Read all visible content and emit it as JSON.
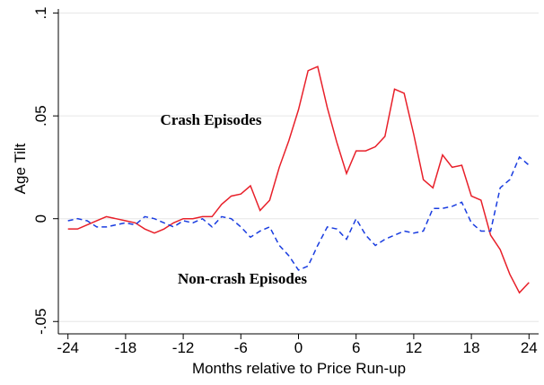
{
  "chart_data": {
    "type": "line",
    "x_label": "Months relative to Price Run-up",
    "y_label": "Age Tilt",
    "annotations": [
      "Crash Episodes",
      "Non-crash Episodes"
    ],
    "x": [
      -24,
      -23,
      -22,
      -21,
      -20,
      -19,
      -18,
      -17,
      -16,
      -15,
      -14,
      -13,
      -12,
      -11,
      -10,
      -9,
      -8,
      -7,
      -6,
      -5,
      -4,
      -3,
      -2,
      -1,
      0,
      1,
      2,
      3,
      4,
      5,
      6,
      7,
      8,
      9,
      10,
      11,
      12,
      13,
      14,
      15,
      16,
      17,
      18,
      19,
      20,
      21,
      22,
      23,
      24
    ],
    "series": [
      {
        "name": "Crash Episodes",
        "color": "#e8202a",
        "dash": false,
        "values": [
          -0.005,
          -0.005,
          -0.003,
          -0.001,
          0.001,
          0,
          -0.001,
          -0.002,
          -0.005,
          -0.007,
          -0.005,
          -0.002,
          0,
          0,
          0.001,
          0.001,
          0.007,
          0.011,
          0.012,
          0.016,
          0.004,
          0.009,
          0.025,
          0.038,
          0.053,
          0.072,
          0.074,
          0.054,
          0.037,
          0.022,
          0.033,
          0.033,
          0.035,
          0.04,
          0.063,
          0.061,
          0.041,
          0.019,
          0.015,
          0.031,
          0.025,
          0.026,
          0.011,
          0.009,
          -0.008,
          -0.015,
          -0.027,
          -0.036,
          -0.031
        ]
      },
      {
        "name": "Non-crash Episodes",
        "color": "#1a3de0",
        "dash": true,
        "values": [
          -0.001,
          0,
          -0.001,
          -0.004,
          -0.004,
          -0.003,
          -0.002,
          -0.003,
          0.001,
          0,
          -0.002,
          -0.004,
          -0.001,
          -0.002,
          0,
          -0.004,
          0.001,
          0,
          -0.004,
          -0.009,
          -0.006,
          -0.004,
          -0.013,
          -0.018,
          -0.025,
          -0.023,
          -0.013,
          -0.004,
          -0.005,
          -0.01,
          0,
          -0.008,
          -0.013,
          -0.01,
          -0.008,
          -0.006,
          -0.007,
          -0.006,
          0.005,
          0.005,
          0.006,
          0.008,
          -0.002,
          -0.006,
          -0.006,
          0.015,
          0.019,
          0.03,
          0.026
        ]
      }
    ],
    "xlim": [
      -25,
      25
    ],
    "ylim": [
      -0.056,
      0.102
    ],
    "xticks": [
      -24,
      -18,
      -12,
      -6,
      0,
      6,
      12,
      18,
      24
    ],
    "yticks": [
      {
        "value": -0.05,
        "label": "-.05"
      },
      0,
      {
        "value": 0.05,
        "label": ".05"
      },
      {
        "value": 0.1,
        "label": ".1"
      }
    ],
    "grid": true
  }
}
